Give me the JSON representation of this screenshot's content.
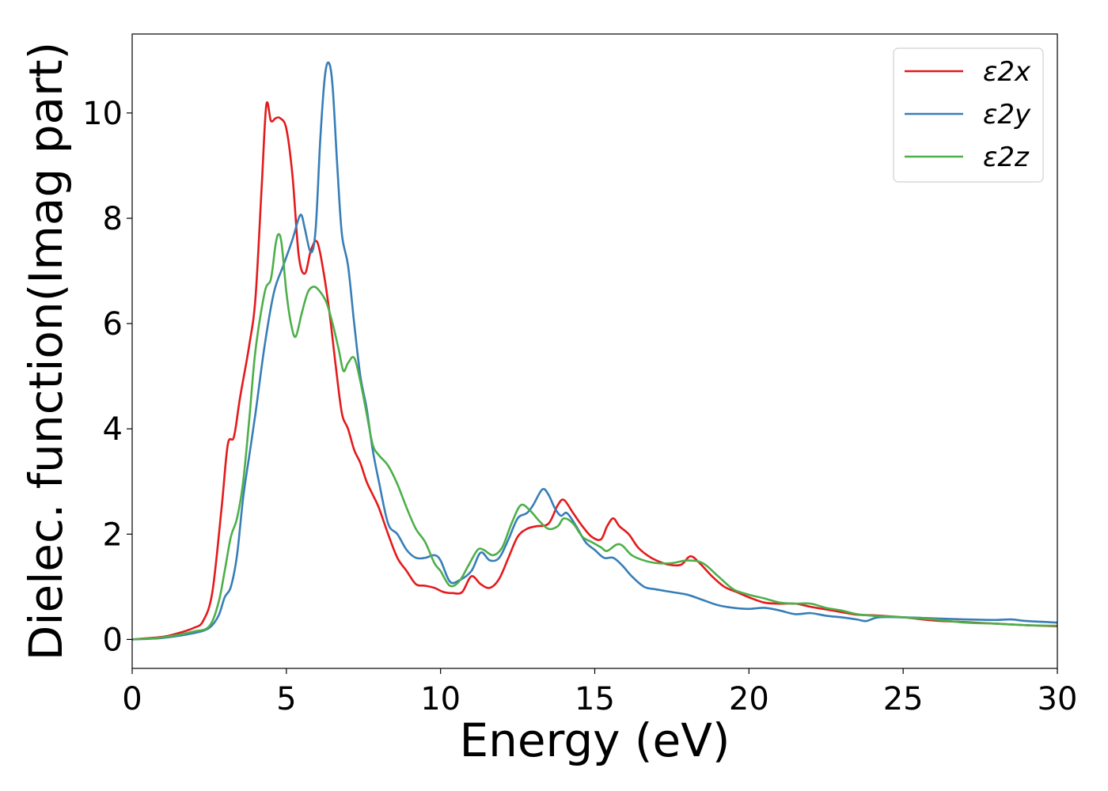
{
  "chart_data": {
    "type": "line",
    "title": "",
    "xlabel": "Energy (eV)",
    "ylabel": "Dielec. function(Imag part)",
    "xlim": [
      0,
      30
    ],
    "ylim": [
      -0.55,
      11.5
    ],
    "xticks": [
      0,
      5,
      10,
      15,
      20,
      25,
      30
    ],
    "yticks": [
      0,
      2,
      4,
      6,
      8,
      10
    ],
    "grid": false,
    "legend_position": "top-right",
    "series": [
      {
        "name": "ε2x",
        "color": "#e41a1c",
        "x": [
          0,
          1,
          1.5,
          2,
          2.3,
          2.6,
          2.9,
          3.1,
          3.3,
          3.5,
          3.8,
          4.0,
          4.2,
          4.35,
          4.5,
          4.65,
          4.8,
          5.0,
          5.2,
          5.4,
          5.6,
          5.8,
          6.0,
          6.2,
          6.4,
          6.6,
          6.8,
          7.0,
          7.2,
          7.4,
          7.6,
          7.8,
          8.0,
          8.3,
          8.6,
          8.9,
          9.2,
          9.5,
          9.8,
          10.1,
          10.4,
          10.7,
          11.0,
          11.3,
          11.6,
          11.9,
          12.2,
          12.5,
          12.8,
          13.1,
          13.5,
          13.8,
          14.0,
          14.3,
          14.6,
          14.9,
          15.2,
          15.4,
          15.6,
          15.8,
          16.1,
          16.4,
          16.7,
          17.0,
          17.4,
          17.8,
          18.1,
          18.4,
          18.8,
          19.2,
          19.6,
          20.0,
          20.5,
          21.0,
          21.5,
          22.0,
          22.5,
          23.0,
          23.5,
          24.0,
          25.0,
          26.0,
          27.0,
          28.0,
          29.0,
          30.0
        ],
        "values": [
          0,
          0.05,
          0.12,
          0.22,
          0.35,
          0.9,
          2.5,
          3.7,
          3.85,
          4.6,
          5.6,
          6.5,
          8.6,
          10.15,
          9.85,
          9.9,
          9.9,
          9.7,
          8.8,
          7.3,
          6.95,
          7.4,
          7.55,
          7.0,
          6.2,
          5.2,
          4.3,
          4.0,
          3.6,
          3.35,
          3.0,
          2.75,
          2.5,
          2.0,
          1.55,
          1.3,
          1.05,
          1.02,
          0.98,
          0.9,
          0.88,
          0.9,
          1.2,
          1.05,
          0.98,
          1.15,
          1.55,
          1.95,
          2.1,
          2.15,
          2.2,
          2.55,
          2.65,
          2.4,
          2.15,
          1.95,
          1.9,
          2.15,
          2.3,
          2.15,
          2.0,
          1.75,
          1.6,
          1.5,
          1.42,
          1.42,
          1.58,
          1.45,
          1.2,
          1.0,
          0.9,
          0.8,
          0.7,
          0.68,
          0.68,
          0.62,
          0.57,
          0.52,
          0.47,
          0.46,
          0.42,
          0.36,
          0.33,
          0.3,
          0.27,
          0.25
        ]
      },
      {
        "name": "ε2y",
        "color": "#377eb8",
        "x": [
          0,
          1,
          2,
          2.5,
          2.8,
          3.0,
          3.2,
          3.4,
          3.6,
          3.8,
          4.0,
          4.3,
          4.6,
          4.9,
          5.2,
          5.4,
          5.5,
          5.6,
          5.8,
          5.95,
          6.1,
          6.25,
          6.38,
          6.5,
          6.65,
          6.8,
          7.0,
          7.2,
          7.4,
          7.6,
          7.8,
          8.0,
          8.3,
          8.6,
          8.9,
          9.2,
          9.5,
          9.8,
          10.0,
          10.3,
          10.6,
          11.0,
          11.3,
          11.6,
          11.9,
          12.2,
          12.5,
          12.8,
          13.0,
          13.3,
          13.5,
          13.7,
          13.9,
          14.1,
          14.4,
          14.7,
          15.0,
          15.3,
          15.6,
          15.9,
          16.2,
          16.6,
          17.0,
          17.5,
          18.0,
          18.5,
          19.0,
          19.5,
          20.0,
          20.5,
          21.0,
          21.5,
          22.0,
          22.5,
          23.0,
          23.5,
          23.8,
          24.2,
          25.0,
          26.0,
          27.0,
          28.0,
          28.5,
          29.0,
          30.0
        ],
        "values": [
          0,
          0.03,
          0.12,
          0.22,
          0.45,
          0.8,
          1.0,
          1.6,
          2.7,
          3.5,
          4.3,
          5.6,
          6.6,
          7.1,
          7.6,
          8.0,
          8.05,
          7.8,
          7.35,
          7.8,
          9.5,
          10.7,
          10.95,
          10.5,
          9.0,
          7.7,
          7.1,
          6.0,
          5.0,
          4.4,
          3.6,
          3.0,
          2.2,
          2.0,
          1.7,
          1.55,
          1.55,
          1.6,
          1.5,
          1.1,
          1.12,
          1.3,
          1.65,
          1.5,
          1.55,
          1.9,
          2.3,
          2.4,
          2.55,
          2.85,
          2.75,
          2.5,
          2.35,
          2.4,
          2.15,
          1.85,
          1.7,
          1.55,
          1.55,
          1.4,
          1.2,
          1.0,
          0.95,
          0.9,
          0.85,
          0.75,
          0.65,
          0.6,
          0.58,
          0.6,
          0.55,
          0.48,
          0.5,
          0.45,
          0.42,
          0.38,
          0.35,
          0.42,
          0.42,
          0.4,
          0.38,
          0.37,
          0.38,
          0.35,
          0.32
        ]
      },
      {
        "name": "ε2z",
        "color": "#4daf4a",
        "x": [
          0,
          1,
          2,
          2.5,
          2.8,
          3.0,
          3.2,
          3.4,
          3.6,
          3.8,
          4.0,
          4.3,
          4.5,
          4.65,
          4.75,
          4.85,
          5.0,
          5.15,
          5.3,
          5.5,
          5.7,
          5.9,
          6.1,
          6.3,
          6.5,
          6.7,
          6.85,
          7.0,
          7.2,
          7.4,
          7.6,
          7.8,
          8.0,
          8.3,
          8.6,
          8.9,
          9.2,
          9.5,
          9.8,
          10.0,
          10.3,
          10.6,
          10.9,
          11.2,
          11.4,
          11.7,
          12.0,
          12.3,
          12.6,
          12.9,
          13.2,
          13.5,
          13.8,
          14.0,
          14.3,
          14.6,
          14.9,
          15.2,
          15.4,
          15.7,
          15.9,
          16.2,
          16.6,
          17.0,
          17.5,
          18.0,
          18.5,
          19.0,
          19.5,
          20.0,
          20.5,
          21.0,
          21.5,
          22.0,
          22.5,
          23.0,
          23.5,
          24.0,
          25.0,
          26.0,
          27.0,
          28.0,
          29.0,
          30.0
        ],
        "values": [
          0,
          0.04,
          0.15,
          0.25,
          0.7,
          1.3,
          1.95,
          2.3,
          3.0,
          4.2,
          5.5,
          6.6,
          6.85,
          7.5,
          7.7,
          7.5,
          6.6,
          6.0,
          5.75,
          6.2,
          6.6,
          6.7,
          6.6,
          6.4,
          6.0,
          5.5,
          5.1,
          5.25,
          5.35,
          4.9,
          4.3,
          3.7,
          3.5,
          3.3,
          2.95,
          2.5,
          2.1,
          1.85,
          1.45,
          1.3,
          1.02,
          1.1,
          1.4,
          1.7,
          1.7,
          1.6,
          1.75,
          2.2,
          2.55,
          2.45,
          2.25,
          2.1,
          2.15,
          2.3,
          2.2,
          1.95,
          1.85,
          1.75,
          1.68,
          1.8,
          1.78,
          1.6,
          1.5,
          1.45,
          1.45,
          1.5,
          1.45,
          1.2,
          0.95,
          0.85,
          0.78,
          0.7,
          0.68,
          0.68,
          0.6,
          0.55,
          0.48,
          0.45,
          0.42,
          0.38,
          0.32,
          0.3,
          0.27,
          0.26
        ]
      }
    ]
  }
}
